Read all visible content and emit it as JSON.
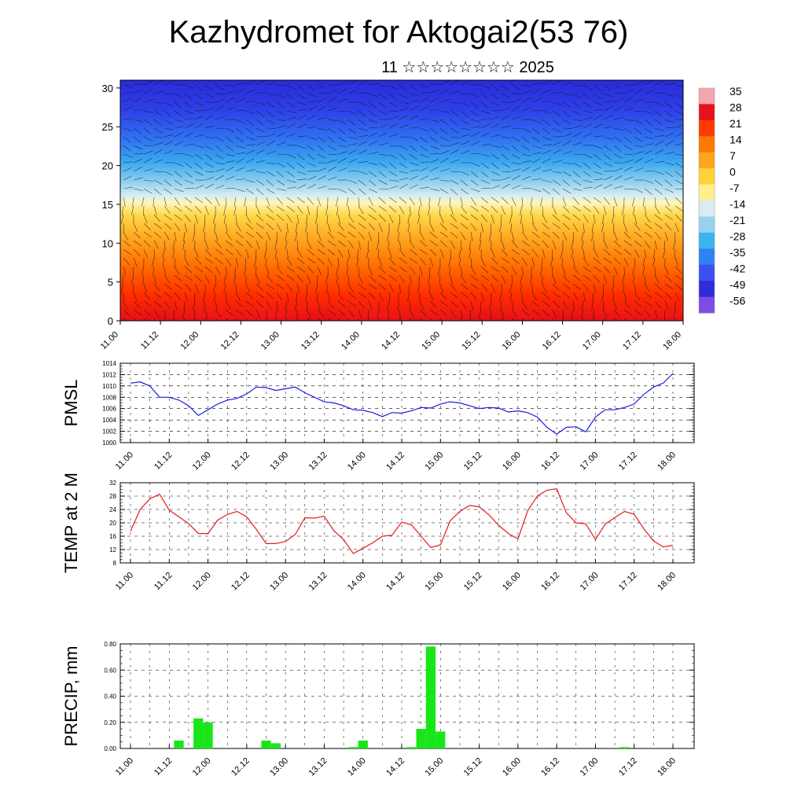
{
  "header": {
    "title": "Kazhydromet for Aktogai2(53 76)",
    "subtitle": "11 ☆☆☆☆☆☆☆☆ 2025"
  },
  "time_labels": [
    "11.00",
    "11.12",
    "12.00",
    "12.12",
    "13.00",
    "13.12",
    "14.00",
    "14.12",
    "15.00",
    "15.12",
    "16.00",
    "16.12",
    "17.00",
    "17.12",
    "18.00"
  ],
  "colorbar": {
    "labels": [
      "35",
      "28",
      "21",
      "14",
      "7",
      "0",
      "-7",
      "-14",
      "-21",
      "-28",
      "-35",
      "-42",
      "-49",
      "-56"
    ],
    "colors": [
      "#f4a6b0",
      "#e8121a",
      "#ff3a00",
      "#ff7800",
      "#ffa51e",
      "#ffd23c",
      "#fff08c",
      "#d8ecf2",
      "#96d2f0",
      "#3cb4f0",
      "#2d82f5",
      "#3c50f0",
      "#2d2ddc",
      "#7c4de6"
    ]
  },
  "chart_data": [
    {
      "type": "heatmap",
      "name": "cross-section",
      "yticks": [
        "0",
        "5",
        "10",
        "15",
        "20",
        "25",
        "30"
      ],
      "ylim": [
        0,
        31
      ],
      "xlim": [
        0,
        28
      ],
      "description_levels": {
        "surface_temp_range": [
          14,
          35
        ],
        "upper_temp_range": [
          -56,
          -42
        ]
      }
    },
    {
      "type": "line",
      "ylabel": "PMSL",
      "ylim": [
        1000,
        1014
      ],
      "yticks": [
        "1000",
        "1002",
        "1004",
        "1006",
        "1008",
        "1010",
        "1012",
        "1014"
      ],
      "color": "#1a1ae6",
      "values": [
        1010.5,
        1010.7,
        1010.0,
        1008.0,
        1008.0,
        1007.5,
        1006.5,
        1004.8,
        1005.8,
        1006.8,
        1007.5,
        1007.8,
        1008.6,
        1009.8,
        1009.7,
        1009.2,
        1009.5,
        1009.8,
        1008.8,
        1008.0,
        1007.2,
        1007.0,
        1006.5,
        1005.8,
        1005.7,
        1005.3,
        1004.6,
        1005.3,
        1005.2,
        1005.6,
        1006.2,
        1006.1,
        1006.8,
        1007.2,
        1007.0,
        1006.5,
        1006.0,
        1006.2,
        1006.1,
        1005.4,
        1005.6,
        1005.3,
        1004.5,
        1002.7,
        1001.5,
        1002.7,
        1002.8,
        1001.9,
        1004.5,
        1005.8,
        1005.8,
        1006.2,
        1006.8,
        1008.5,
        1009.8,
        1010.5,
        1012.2
      ]
    },
    {
      "type": "line",
      "ylabel": "TEMP at 2 M",
      "ylim": [
        8,
        32
      ],
      "yticks": [
        "8",
        "12",
        "16",
        "20",
        "24",
        "28",
        "32"
      ],
      "color": "#e61a1a",
      "values": [
        17.5,
        24.0,
        27.2,
        28.6,
        23.8,
        21.8,
        19.8,
        16.8,
        16.8,
        20.8,
        22.5,
        23.4,
        21.8,
        18.0,
        13.8,
        13.8,
        14.4,
        16.5,
        21.5,
        21.4,
        22.0,
        17.6,
        15.0,
        10.8,
        12.4,
        14.0,
        16.0,
        16.3,
        20.2,
        19.4,
        16.0,
        12.6,
        13.4,
        20.6,
        23.4,
        25.2,
        24.8,
        22.4,
        19.3,
        16.8,
        15.2,
        23.6,
        28.0,
        29.8,
        30.2,
        23.0,
        20.0,
        19.7,
        15.0,
        19.6,
        21.6,
        23.4,
        22.6,
        18.2,
        14.6,
        12.8,
        13.3
      ]
    },
    {
      "type": "bar",
      "ylabel": "PRECIP, mm",
      "ylim": [
        0,
        0.8
      ],
      "yticks": [
        "0.00",
        "0.20",
        "0.40",
        "0.60",
        "0.80"
      ],
      "color": "#19e619",
      "values": [
        0,
        0,
        0,
        0,
        0,
        0.06,
        0,
        0.23,
        0.2,
        0,
        0,
        0,
        0,
        0,
        0.06,
        0.04,
        0,
        0,
        0,
        0,
        0,
        0,
        0,
        0.01,
        0.06,
        0,
        0,
        0,
        0,
        0.01,
        0.15,
        0.78,
        0.13,
        0,
        0,
        0,
        0,
        0,
        0,
        0,
        0,
        0,
        0,
        0,
        0,
        0,
        0,
        0,
        0,
        0,
        0,
        0.01,
        0,
        0,
        0,
        0,
        0
      ]
    }
  ]
}
